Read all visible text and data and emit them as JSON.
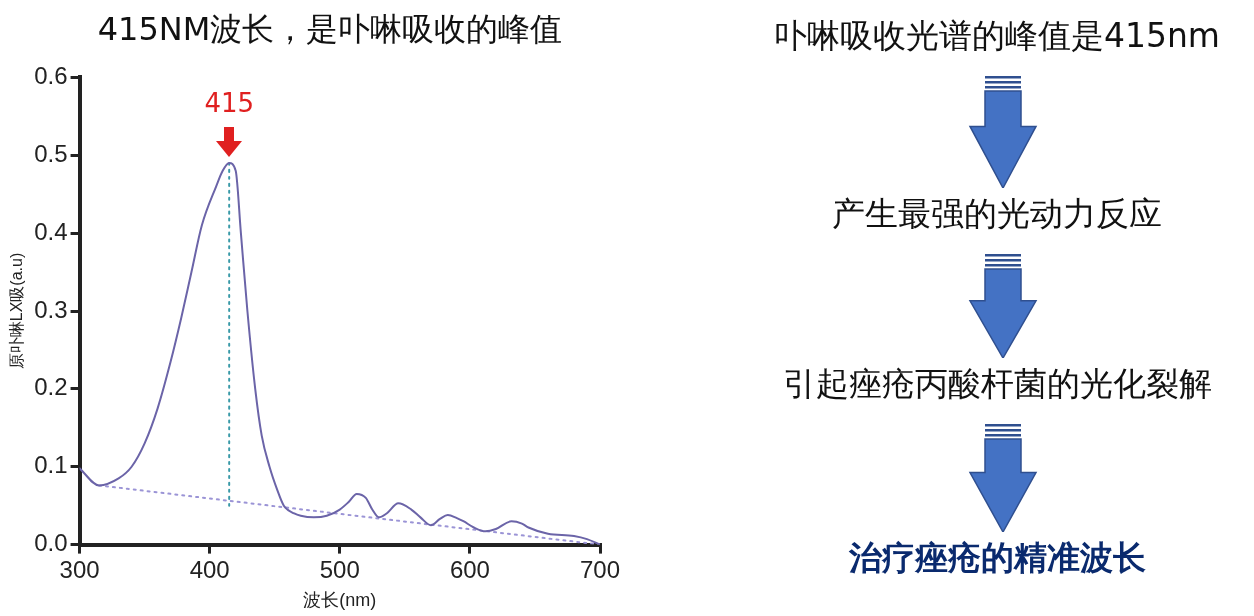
{
  "chart_data": [
    {
      "type": "line",
      "title": "415NM波长，是卟啉吸收的峰值",
      "xlabel": "波长(nm)",
      "ylabel": "原卟啉LX吸(a.u)",
      "xlim": [
        300,
        700
      ],
      "xticks": [
        300,
        400,
        500,
        600,
        700
      ],
      "ylim": [
        0,
        0.6
      ],
      "yticks": [
        {
          "value": 0,
          "label": "0.0"
        },
        {
          "value": 0.1,
          "label": "0.1"
        },
        {
          "value": 0.2,
          "label": "0.2"
        },
        {
          "value": 0.3,
          "label": "0.3"
        },
        {
          "value": 0.4,
          "label": "0.4"
        },
        {
          "value": 0.5,
          "label": "0.5"
        },
        {
          "value": 0.6,
          "label": "0.6"
        }
      ],
      "marker": "none",
      "annotations": [
        {
          "text": "415",
          "x": 415,
          "y": 0.49
        }
      ],
      "series": [
        {
          "color": "#6b64a8",
          "line_style": "solid",
          "x": [
            300,
            315,
            330,
            340,
            350,
            360,
            370,
            378,
            386,
            394,
            405,
            410,
            415,
            420,
            424,
            429,
            435,
            440,
            446,
            452,
            457,
            465,
            470,
            480,
            490,
            500,
            507,
            513,
            520,
            525,
            530,
            536,
            545,
            555,
            562,
            570,
            577,
            583,
            590,
            595,
            603,
            612,
            620,
            632,
            640,
            645,
            660,
            680,
            690,
            700
          ],
          "values": [
            0.098,
            0.076,
            0.085,
            0.1,
            0.13,
            0.175,
            0.235,
            0.29,
            0.35,
            0.41,
            0.46,
            0.48,
            0.49,
            0.48,
            0.4,
            0.3,
            0.2,
            0.14,
            0.1,
            0.07,
            0.05,
            0.04,
            0.037,
            0.035,
            0.037,
            0.045,
            0.055,
            0.065,
            0.06,
            0.045,
            0.035,
            0.04,
            0.053,
            0.045,
            0.035,
            0.025,
            0.033,
            0.038,
            0.034,
            0.03,
            0.022,
            0.017,
            0.02,
            0.03,
            0.027,
            0.022,
            0.014,
            0.011,
            0.007,
            0.0
          ]
        },
        {
          "color": "#9b94d6",
          "line_style": "dotted",
          "x": [
            315,
            700
          ],
          "values": [
            0.076,
            0.0
          ]
        },
        {
          "color": "#3a9aa8",
          "line_style": "dotted",
          "x": [
            415,
            415
          ],
          "values": [
            0.05,
            0.49
          ]
        }
      ]
    },
    {
      "type": "other",
      "annotations": [
        "卟啉吸收光谱的峰值是415nm",
        "产生最强的光动力反应",
        "引起痤疮丙酸杆菌的光化裂解",
        "治疗痤疮的精准波长"
      ]
    }
  ]
}
